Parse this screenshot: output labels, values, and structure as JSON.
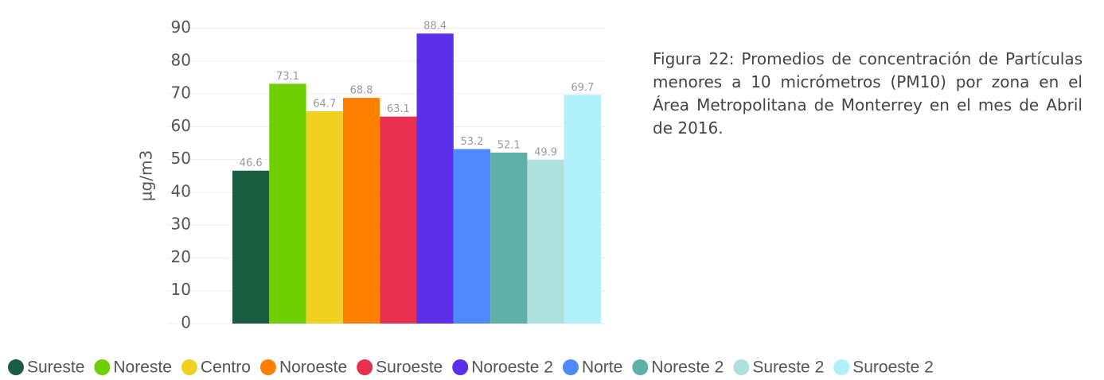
{
  "chart_data": {
    "type": "bar",
    "caption": "Figura 22: Promedios de concentración de Partículas menores a 10 micrómetros (PM10) por zona en el Área Metropolitana de Monterrey en el mes de Abril de 2016.",
    "y_label": "µg/m3",
    "categories": [
      "Sureste",
      "Noreste",
      "Centro",
      "Noroeste",
      "Suroeste",
      "Noroeste 2",
      "Norte",
      "Noreste 2",
      "Sureste 2",
      "Suroeste 2"
    ],
    "values": [
      46.6,
      73.1,
      64.7,
      68.8,
      63.1,
      88.4,
      53.2,
      52.1,
      49.9,
      69.7
    ],
    "colors": [
      "#1a5c40",
      "#6fcf00",
      "#f0d020",
      "#ff8000",
      "#e93050",
      "#5b30e8",
      "#5088ff",
      "#60b0aa",
      "#aee0de",
      "#b0f0fa"
    ],
    "ylim": [
      0,
      95
    ],
    "yticks": [
      0,
      10,
      20,
      30,
      40,
      50,
      60,
      70,
      80,
      90
    ],
    "grid": true,
    "legend": "bottom"
  }
}
